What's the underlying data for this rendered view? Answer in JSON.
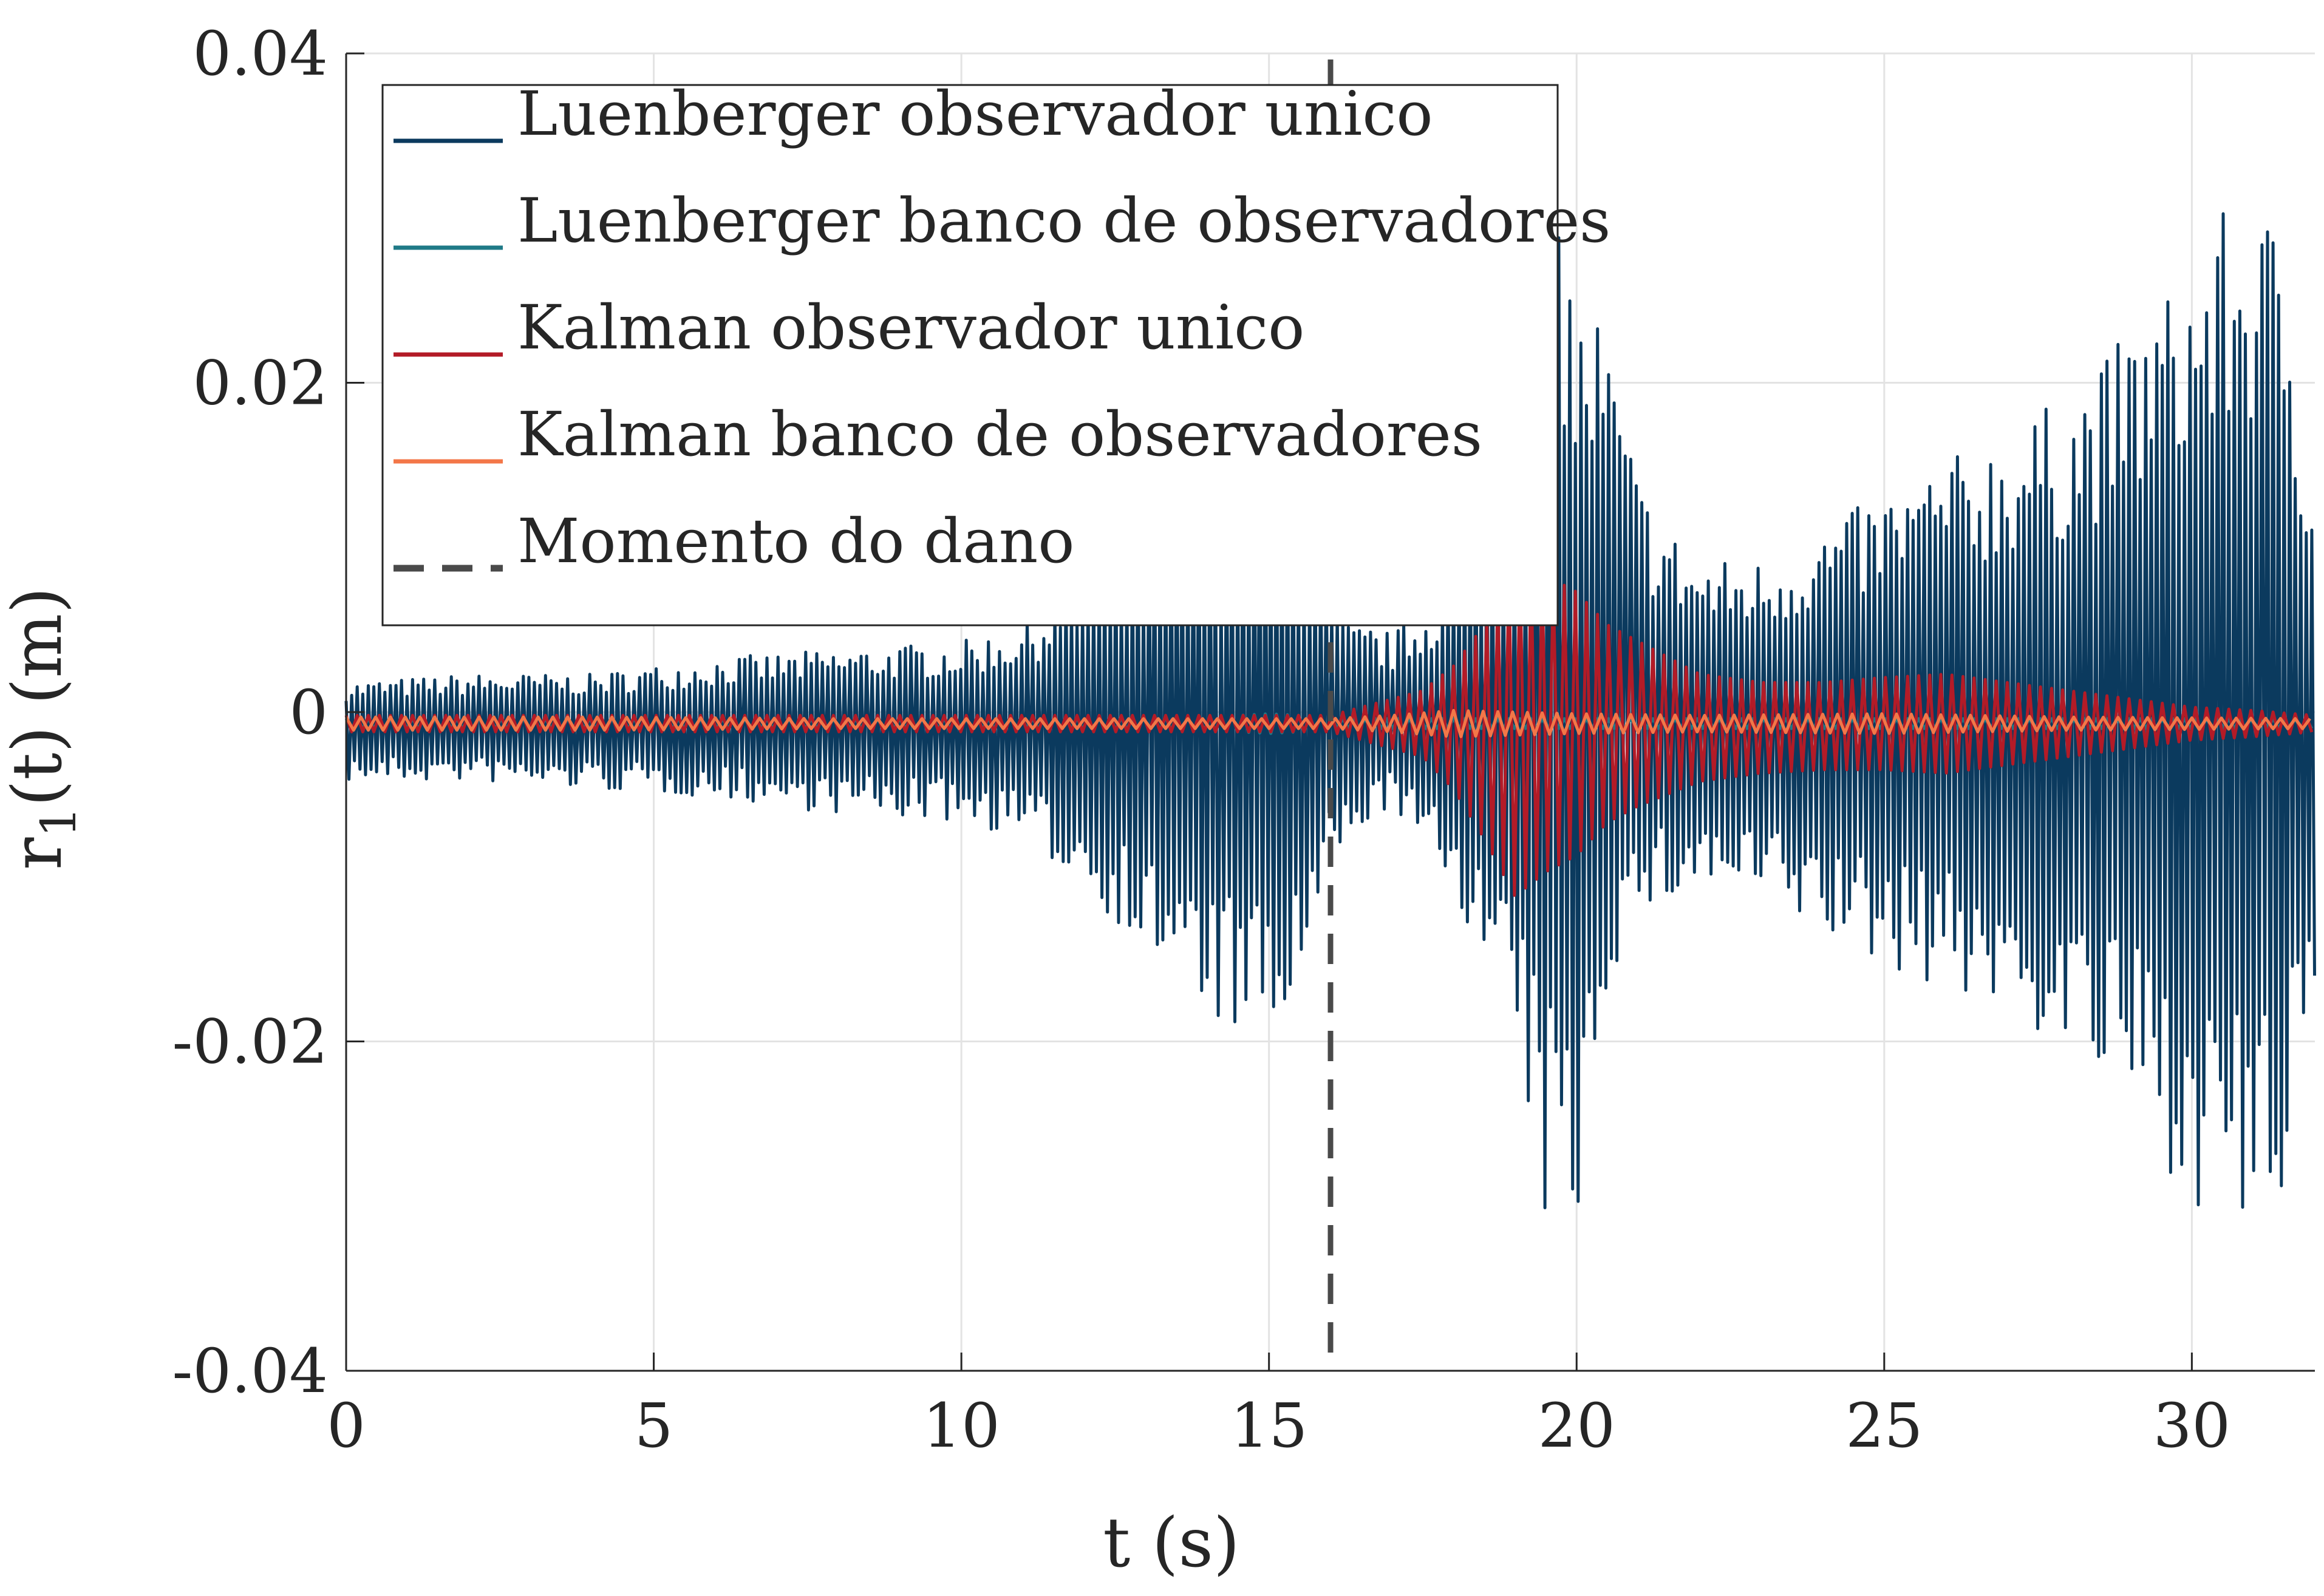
{
  "chart_data": {
    "type": "line",
    "title": "",
    "xlabel": "t (s)",
    "ylabel_main": "r",
    "ylabel_sub": "1",
    "ylabel_rest": "(t) (m)",
    "xlim": [
      0,
      32
    ],
    "ylim": [
      -0.04,
      0.04
    ],
    "xticks": [
      0,
      5,
      10,
      15,
      20,
      25,
      30
    ],
    "xtick_labels": [
      "0",
      "5",
      "10",
      "15",
      "20",
      "25",
      "30"
    ],
    "yticks": [
      -0.04,
      -0.02,
      0,
      0.02,
      0.04
    ],
    "ytick_labels": [
      "-0.04",
      "-0.02",
      "0",
      "0.02",
      "0.04"
    ],
    "grid": true,
    "legend_position": "top-left",
    "damage_time": 16,
    "series": [
      {
        "name": "Luenberger observador unico",
        "color": "#0b3a5e",
        "envelope_t": [
          0,
          2,
          4,
          6,
          8,
          10,
          11,
          12,
          13,
          14,
          15,
          15.5,
          16,
          16.3,
          16.6,
          17,
          17.5,
          18,
          18.5,
          19,
          19.5,
          19.7,
          20,
          20.3,
          20.6,
          21,
          21.5,
          22,
          23,
          24,
          25,
          26,
          27,
          28,
          29,
          30,
          30.5,
          31,
          31.5,
          32
        ],
        "envelope_upper": [
          0.0025,
          0.003,
          0.003,
          0.004,
          0.0045,
          0.005,
          0.006,
          0.009,
          0.0125,
          0.0155,
          0.017,
          0.015,
          0.008,
          0.006,
          0.006,
          0.0055,
          0.007,
          0.01,
          0.015,
          0.02,
          0.032,
          0.0355,
          0.025,
          0.026,
          0.022,
          0.015,
          0.012,
          0.01,
          0.01,
          0.012,
          0.014,
          0.016,
          0.018,
          0.02,
          0.024,
          0.028,
          0.031,
          0.032,
          0.03,
          0.015
        ],
        "envelope_lower": [
          -0.0035,
          -0.0035,
          -0.004,
          -0.0045,
          -0.0055,
          -0.006,
          -0.007,
          -0.01,
          -0.014,
          -0.018,
          -0.0202,
          -0.017,
          -0.009,
          -0.008,
          -0.006,
          -0.005,
          -0.008,
          -0.01,
          -0.015,
          -0.02,
          -0.031,
          -0.031,
          -0.032,
          -0.02,
          -0.015,
          -0.012,
          -0.011,
          -0.01,
          -0.011,
          -0.013,
          -0.015,
          -0.016,
          -0.018,
          -0.02,
          -0.024,
          -0.029,
          -0.031,
          -0.0325,
          -0.03,
          -0.018
        ]
      },
      {
        "name": "Luenberger banco de observadores",
        "color": "#1f7a87",
        "envelope_t": [
          0,
          5,
          10,
          14,
          15,
          15.5,
          16,
          17,
          20,
          25,
          30,
          32
        ],
        "envelope_upper": [
          0.0003,
          0.0003,
          0.0003,
          0.0004,
          0.0006,
          0.0005,
          0.0003,
          0.0003,
          0.0003,
          0.0003,
          0.0003,
          0.0003
        ],
        "envelope_lower": [
          -0.0003,
          -0.0003,
          -0.0003,
          -0.0004,
          -0.0006,
          -0.0005,
          -0.0003,
          -0.0003,
          -0.0003,
          -0.0003,
          -0.0003,
          -0.0003
        ]
      },
      {
        "name": "Kalman observador unico",
        "color": "#b31b27",
        "envelope_t": [
          0,
          16,
          16.5,
          17,
          17.5,
          18,
          18.5,
          19,
          19.5,
          20,
          20.5,
          21,
          22,
          23,
          24,
          25,
          26,
          27,
          28,
          29,
          30,
          31,
          32
        ],
        "envelope_upper": [
          0.0005,
          0.0005,
          0.001,
          0.0015,
          0.002,
          0.0035,
          0.006,
          0.01,
          0.009,
          0.008,
          0.006,
          0.005,
          0.003,
          0.0025,
          0.0025,
          0.0028,
          0.003,
          0.0025,
          0.002,
          0.0015,
          0.001,
          0.0008,
          0.0005
        ],
        "envelope_lower": [
          -0.0005,
          -0.0005,
          -0.001,
          -0.0015,
          -0.002,
          -0.004,
          -0.007,
          -0.0105,
          -0.009,
          -0.008,
          -0.006,
          -0.005,
          -0.0035,
          -0.003,
          -0.0028,
          -0.0028,
          -0.003,
          -0.0025,
          -0.002,
          -0.0015,
          -0.001,
          -0.0008,
          -0.0005
        ]
      },
      {
        "name": "Kalman banco de observadores",
        "color": "#f37748",
        "envelope_t": [
          0,
          2,
          4,
          8,
          12,
          16,
          17,
          18,
          20,
          22,
          25,
          28,
          32
        ],
        "envelope_upper": [
          0.0004,
          0.0004,
          0.0004,
          0.0003,
          0.0003,
          0.0003,
          0.0005,
          0.0008,
          0.0006,
          0.0005,
          0.0006,
          0.0004,
          0.0003
        ],
        "envelope_lower": [
          -0.0004,
          -0.0004,
          -0.0004,
          -0.0003,
          -0.0003,
          -0.0003,
          -0.0005,
          -0.0008,
          -0.0006,
          -0.0005,
          -0.0006,
          -0.0004,
          -0.0003
        ]
      },
      {
        "name": "Momento do dano",
        "color": "#4a4a4a"
      }
    ]
  }
}
